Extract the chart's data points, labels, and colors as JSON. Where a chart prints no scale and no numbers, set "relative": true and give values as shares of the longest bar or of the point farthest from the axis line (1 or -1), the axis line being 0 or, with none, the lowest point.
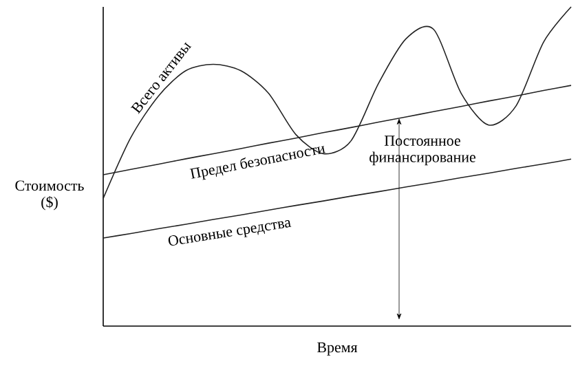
{
  "chart_data": {
    "type": "line",
    "relative": true,
    "xlabel": "Время",
    "ylabel": "Стоимость ($)",
    "categories": [
      null,
      null,
      null,
      null,
      null,
      null,
      null,
      null,
      null,
      null,
      null,
      null,
      null,
      null,
      null,
      null,
      null,
      null
    ],
    "series": [
      {
        "name": "Всего активы",
        "color": "#222222",
        "values": [
          0.4,
          0.59,
          0.72,
          0.8,
          0.82,
          0.8,
          0.73,
          0.6,
          0.54,
          0.58,
          0.76,
          0.9,
          0.93,
          0.73,
          0.63,
          0.69,
          0.89,
          1.0
        ]
      },
      {
        "name": "Предел безопасности",
        "color": "#222222",
        "values": [
          0.474,
          0.491,
          0.507,
          0.524,
          0.54,
          0.556,
          0.573,
          0.589,
          0.606,
          0.622,
          0.639,
          0.655,
          0.672,
          0.688,
          0.705,
          0.721,
          0.738,
          0.754
        ]
      },
      {
        "name": "Основные средства",
        "color": "#222222",
        "values": [
          0.276,
          0.29,
          0.305,
          0.319,
          0.334,
          0.348,
          0.363,
          0.378,
          0.392,
          0.407,
          0.421,
          0.436,
          0.45,
          0.465,
          0.479,
          0.494,
          0.508,
          0.523
        ]
      }
    ],
    "annotations": [
      "Постоянное финансирование"
    ]
  }
}
